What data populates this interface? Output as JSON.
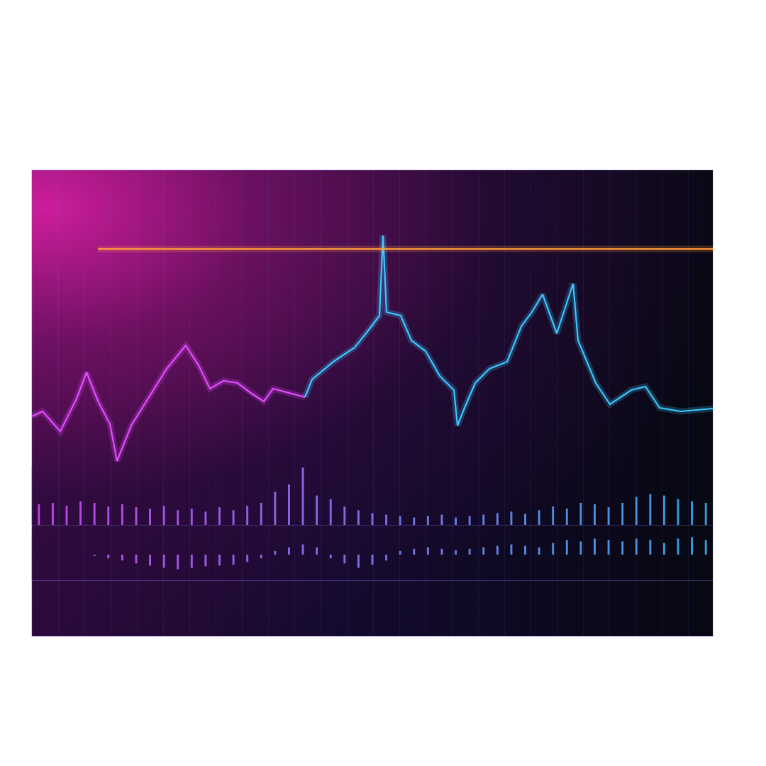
{
  "chart_data": [
    {
      "type": "line",
      "x": [
        0,
        15,
        40,
        63,
        77,
        93,
        110,
        120,
        140,
        165,
        190,
        217,
        235,
        251,
        270,
        290,
        310,
        327,
        340,
        385,
        395,
        425,
        455,
        475,
        490,
        495,
        500,
        520,
        535,
        555,
        575,
        595,
        600,
        610,
        625,
        645,
        670,
        690,
        705,
        720,
        740,
        763,
        770,
        795,
        815,
        845,
        865,
        885,
        915,
        960
      ],
      "xlim": [
        0,
        960
      ],
      "ylim": [
        0,
        657
      ],
      "tick_labels": false,
      "series": [
        {
          "color": "#e24cff",
          "values": [
            310,
            317,
            289,
            335,
            372,
            332,
            299,
            247,
            297,
            337,
            377,
            410,
            382,
            349,
            360,
            357,
            342,
            331,
            349,
            337,
            null,
            null,
            null,
            null,
            null,
            null,
            null,
            null,
            null,
            null,
            null,
            null,
            null,
            null,
            null,
            null,
            null,
            null,
            null,
            null,
            null,
            null,
            null,
            null,
            null,
            null,
            null,
            null,
            null,
            null
          ]
        },
        {
          "color": "#3cc8ff",
          "values": [
            null,
            null,
            null,
            null,
            null,
            null,
            null,
            null,
            null,
            null,
            null,
            null,
            null,
            null,
            null,
            null,
            null,
            null,
            null,
            337,
            362,
            387,
            407,
            432,
            452,
            565,
            457,
            452,
            417,
            402,
            367,
            347,
            297,
            322,
            357,
            377,
            387,
            437,
            457,
            482,
            427,
            497,
            417,
            357,
            327,
            347,
            352,
            322,
            317,
            321
          ]
        },
        {
          "color": "#ff9a3c",
          "values": [
            null,
            null,
            null,
            null,
            null,
            546,
            546,
            546,
            546,
            546,
            546,
            546,
            546,
            546,
            546,
            546,
            546,
            546,
            546,
            546,
            546,
            546,
            546,
            546,
            546,
            546,
            546,
            546,
            546,
            546,
            546,
            546,
            546,
            546,
            546,
            546,
            546,
            546,
            546,
            546,
            546,
            546,
            546,
            546,
            546,
            546,
            546,
            546,
            546,
            546
          ]
        }
      ]
    },
    {
      "type": "bar",
      "x": [
        0,
        20,
        40,
        60,
        80,
        100,
        120,
        140,
        160,
        180,
        200,
        220,
        240,
        260,
        280,
        300,
        320,
        340,
        360,
        380,
        400,
        420,
        440,
        460,
        480,
        500,
        520,
        540,
        560,
        580,
        600,
        620,
        640,
        660,
        680,
        700,
        720,
        740,
        760,
        780,
        800,
        820,
        840,
        860,
        880,
        900,
        920,
        940,
        960
      ],
      "values": [
        28,
        30,
        26,
        32,
        30,
        25,
        28,
        24,
        22,
        26,
        20,
        22,
        18,
        24,
        20,
        26,
        30,
        45,
        55,
        78,
        40,
        35,
        25,
        20,
        16,
        14,
        12,
        10,
        12,
        14,
        10,
        12,
        14,
        16,
        18,
        15,
        20,
        25,
        22,
        30,
        28,
        24,
        30,
        38,
        42,
        40,
        35,
        32,
        30
      ],
      "xlim": [
        -10,
        970
      ],
      "ylim": [
        0,
        80
      ],
      "tick_labels": false
    },
    {
      "type": "bar",
      "x": [
        0,
        20,
        40,
        60,
        80,
        100,
        120,
        140,
        160,
        180,
        200,
        220,
        240,
        260,
        280,
        300,
        320,
        340,
        360,
        380,
        400,
        420,
        440,
        460,
        480,
        500,
        520,
        540,
        560,
        580,
        600,
        620,
        640,
        660,
        680,
        700,
        720,
        740,
        760,
        780,
        800,
        820,
        840,
        860,
        880,
        900,
        920,
        940,
        960
      ],
      "values": [
        0,
        0,
        0,
        0,
        -2,
        -5,
        -8,
        -12,
        -15,
        -18,
        -20,
        -18,
        -16,
        -15,
        -14,
        -10,
        -5,
        5,
        10,
        14,
        10,
        -5,
        -12,
        -18,
        -14,
        -8,
        5,
        8,
        10,
        8,
        6,
        8,
        10,
        12,
        14,
        12,
        10,
        16,
        20,
        18,
        22,
        20,
        18,
        22,
        20,
        16,
        22,
        24,
        20
      ],
      "xlim": [
        -10,
        970
      ],
      "ylim": [
        -35,
        35
      ],
      "tick_labels": false
    }
  ]
}
